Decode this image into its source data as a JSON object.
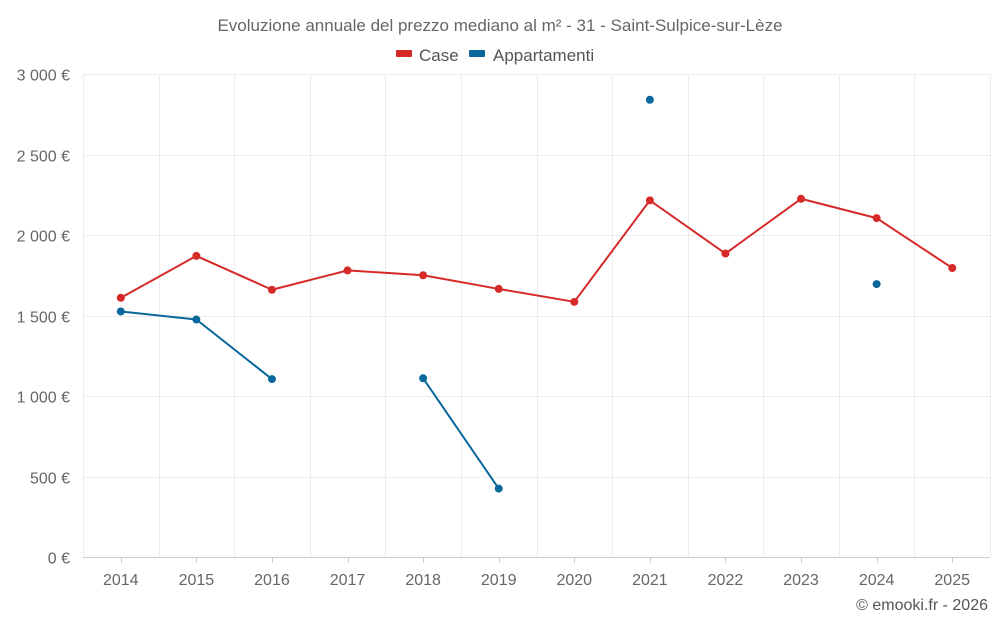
{
  "chart_data": {
    "type": "line",
    "title": "Evoluzione annuale del prezzo mediano al m² - 31 - Saint-Sulpice-sur-Lèze",
    "categories": [
      "2014",
      "2015",
      "2016",
      "2017",
      "2018",
      "2019",
      "2020",
      "2021",
      "2022",
      "2023",
      "2024",
      "2025"
    ],
    "y_ticks": [
      0,
      500,
      1000,
      1500,
      2000,
      2500,
      3000
    ],
    "y_tick_labels": [
      "0 €",
      "500 €",
      "1 000 €",
      "1 500 €",
      "2 000 €",
      "2 500 €",
      "3 000 €"
    ],
    "ylim": [
      0,
      3000
    ],
    "grid": true,
    "legend_position": "top-center",
    "series": [
      {
        "name": "Case",
        "color": "#d62a28",
        "values": [
          1610,
          1870,
          1660,
          1780,
          1750,
          1665,
          1585,
          2215,
          1885,
          2225,
          2105,
          1795
        ]
      },
      {
        "name": "Appartamenti",
        "color": "#0a679c",
        "values": [
          1525,
          1475,
          1105,
          null,
          1110,
          425,
          null,
          2840,
          null,
          null,
          1695,
          null
        ]
      }
    ]
  },
  "credit": "© emooki.fr - 2026"
}
